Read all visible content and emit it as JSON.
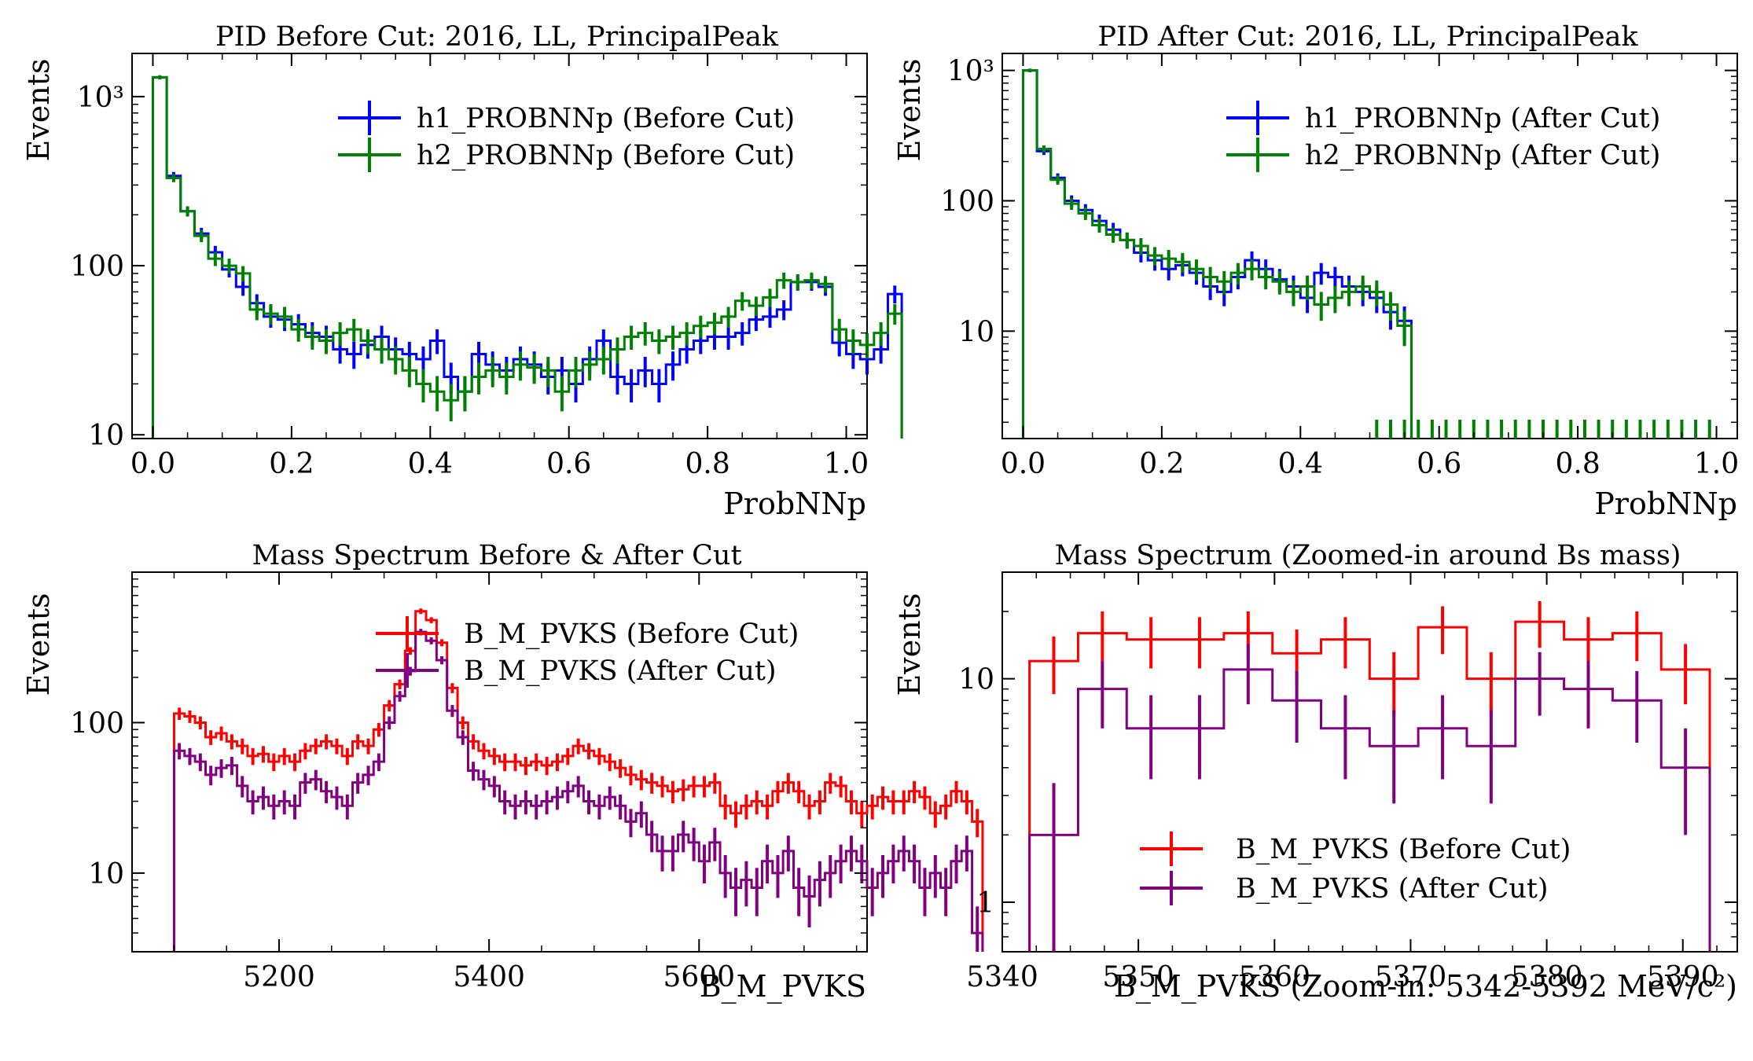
{
  "chart_data": [
    {
      "id": "p1",
      "type": "step-histogram",
      "title": "PID Before Cut: 2016, LL, PrincipalPeak",
      "xlabel": "ProbNNp",
      "ylabel": "Events",
      "yscale": "log",
      "xlim": [
        -0.03,
        1.03
      ],
      "ylim": [
        9.5,
        1800
      ],
      "xticks": [
        0.0,
        0.2,
        0.4,
        0.6,
        0.8,
        1.0
      ],
      "xtick_labels": [
        "0.0",
        "0.2",
        "0.4",
        "0.6",
        "0.8",
        "1.0"
      ],
      "yticks": [
        10,
        100,
        1000
      ],
      "ytick_labels": [
        "10",
        "100",
        "10³"
      ],
      "legend": [
        "h1_PROBNNp (Before Cut)",
        "h2_PROBNNp (Before Cut)"
      ],
      "legend_loc": "upper right",
      "x_start": 0.0,
      "bin_width": 0.02,
      "series": [
        {
          "name": "h1_PROBNNp (Before Cut)",
          "color": "#0000ff",
          "values": [
            1300,
            340,
            210,
            155,
            120,
            95,
            75,
            60,
            50,
            48,
            45,
            40,
            38,
            32,
            30,
            34,
            38,
            32,
            30,
            28,
            36,
            22,
            18,
            30,
            26,
            24,
            28,
            26,
            22,
            24,
            20,
            28,
            36,
            22,
            20,
            24,
            20,
            26,
            32,
            36,
            38,
            38,
            40,
            48,
            50,
            55,
            80,
            80,
            75,
            35,
            30,
            28,
            32,
            68
          ]
        },
        {
          "name": "h2_PROBNNp (Before Cut)",
          "color": "#008000",
          "values": [
            1300,
            330,
            210,
            150,
            110,
            100,
            90,
            55,
            52,
            50,
            42,
            38,
            36,
            40,
            42,
            36,
            32,
            28,
            24,
            20,
            18,
            16,
            18,
            22,
            24,
            22,
            26,
            25,
            24,
            18,
            24,
            26,
            28,
            32,
            38,
            40,
            36,
            38,
            40,
            44,
            46,
            50,
            62,
            58,
            65,
            82,
            80,
            82,
            78,
            42,
            36,
            34,
            40,
            52
          ]
        }
      ]
    },
    {
      "id": "p2",
      "type": "step-histogram",
      "title": "PID After Cut: 2016, LL, PrincipalPeak",
      "xlabel": "ProbNNp",
      "ylabel": "Events",
      "yscale": "log",
      "xlim": [
        -0.03,
        1.03
      ],
      "ylim": [
        1.5,
        1350
      ],
      "xticks": [
        0.0,
        0.2,
        0.4,
        0.6,
        0.8,
        1.0
      ],
      "xtick_labels": [
        "0.0",
        "0.2",
        "0.4",
        "0.6",
        "0.8",
        "1.0"
      ],
      "yticks": [
        10,
        100,
        1000
      ],
      "ytick_labels": [
        "10",
        "100",
        "10³"
      ],
      "legend": [
        "h1_PROBNNp (After Cut)",
        "h2_PROBNNp (After Cut)"
      ],
      "legend_loc": "upper right",
      "x_start": 0.0,
      "bin_width": 0.02,
      "cut_at": 0.51,
      "series": [
        {
          "name": "h1_PROBNNp (After Cut)",
          "color": "#0000ff",
          "values": [
            1000,
            240,
            150,
            100,
            85,
            70,
            60,
            50,
            40,
            35,
            30,
            32,
            28,
            22,
            20,
            26,
            35,
            30,
            25,
            22,
            18,
            28,
            26,
            22,
            20,
            18,
            14,
            12
          ]
        },
        {
          "name": "h2_PROBNNp (After Cut)",
          "color": "#008000",
          "values": [
            1000,
            250,
            145,
            95,
            80,
            65,
            55,
            50,
            45,
            38,
            36,
            34,
            30,
            26,
            24,
            28,
            30,
            26,
            24,
            20,
            22,
            16,
            18,
            20,
            22,
            20,
            16,
            11
          ]
        }
      ]
    },
    {
      "id": "p3",
      "type": "step-histogram",
      "title": "Mass Spectrum Before & After Cut",
      "xlabel": "B_M_PVKS",
      "ylabel": "Events",
      "yscale": "log",
      "xlim": [
        5060,
        5760
      ],
      "ylim": [
        3,
        1000
      ],
      "xticks": [
        5200,
        5400,
        5600
      ],
      "xtick_labels": [
        "5200",
        "5400",
        "5600"
      ],
      "yticks": [
        10,
        100
      ],
      "ytick_labels": [
        "10",
        "100"
      ],
      "legend": [
        "B_M_PVKS (Before Cut)",
        "B_M_PVKS (After Cut)"
      ],
      "legend_loc": "upper center",
      "x_start": 5100,
      "bin_width": 10,
      "series": [
        {
          "name": "B_M_PVKS (Before Cut)",
          "color": "#ff0000",
          "values": [
            115,
            110,
            100,
            80,
            85,
            75,
            70,
            60,
            62,
            55,
            60,
            55,
            65,
            70,
            75,
            70,
            60,
            75,
            70,
            90,
            130,
            180,
            300,
            550,
            480,
            340,
            170,
            100,
            75,
            65,
            60,
            55,
            55,
            52,
            55,
            52,
            55,
            60,
            70,
            65,
            60,
            55,
            50,
            45,
            42,
            40,
            38,
            35,
            36,
            38,
            38,
            40,
            28,
            25,
            28,
            30,
            28,
            35,
            40,
            35,
            28,
            30,
            40,
            38,
            30,
            25,
            28,
            32,
            30,
            30,
            35,
            32,
            25,
            28,
            35,
            30,
            22
          ]
        },
        {
          "name": "B_M_PVKS (After Cut)",
          "color": "#800080",
          "values": [
            65,
            60,
            55,
            45,
            50,
            52,
            38,
            30,
            32,
            28,
            30,
            28,
            40,
            42,
            35,
            32,
            28,
            40,
            45,
            55,
            100,
            150,
            220,
            400,
            350,
            260,
            120,
            80,
            48,
            42,
            38,
            30,
            28,
            30,
            28,
            30,
            32,
            35,
            38,
            30,
            28,
            32,
            28,
            22,
            25,
            18,
            14,
            14,
            18,
            16,
            12,
            16,
            10,
            8,
            9,
            8,
            12,
            10,
            14,
            8,
            7,
            9,
            10,
            12,
            14,
            12,
            8,
            10,
            12,
            14,
            12,
            8,
            10,
            8,
            12,
            14,
            4
          ]
        }
      ]
    },
    {
      "id": "p4",
      "type": "step-histogram",
      "title": "Mass Spectrum (Zoomed-in around Bs mass)",
      "xlabel": "B_M_PVKS (Zoom-in: 5342-5392 MeV/c²)",
      "ylabel": "Events",
      "yscale": "log",
      "xlim": [
        5340,
        5394
      ],
      "ylim": [
        0.6,
        30
      ],
      "xticks": [
        5340,
        5350,
        5360,
        5370,
        5380,
        5390
      ],
      "xtick_labels": [
        "5340",
        "5350",
        "5360",
        "5370",
        "5380",
        "5390"
      ],
      "yticks": [
        1,
        10
      ],
      "ytick_labels": [
        "1",
        "10"
      ],
      "legend": [
        "B_M_PVKS (Before Cut)",
        "B_M_PVKS (After Cut)"
      ],
      "legend_loc": "lower center",
      "x_start": 5342,
      "bin_width": 3.57,
      "series": [
        {
          "name": "B_M_PVKS (Before Cut)",
          "color": "#ff0000",
          "values": [
            12,
            16,
            15,
            15,
            16,
            13,
            15,
            10,
            17,
            10,
            18,
            15,
            16,
            11
          ]
        },
        {
          "name": "B_M_PVKS (After Cut)",
          "color": "#800080",
          "values": [
            2,
            9,
            6,
            6,
            11,
            8,
            6,
            5,
            6,
            5,
            10,
            9,
            8,
            4
          ]
        }
      ]
    }
  ]
}
